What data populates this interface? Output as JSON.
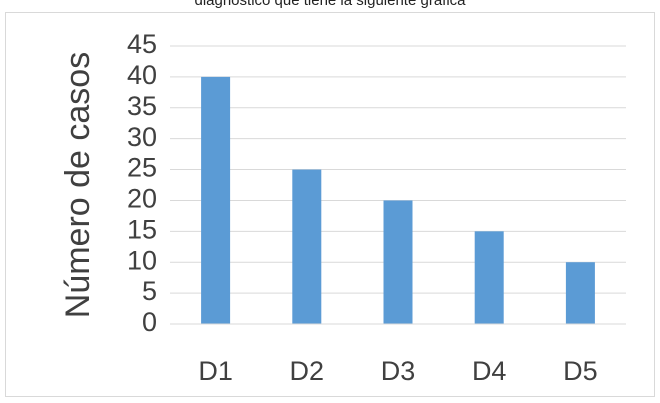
{
  "caption": "diagnóstico que tiene la siguiente gráfica",
  "chart_data": {
    "type": "bar",
    "categories": [
      "D1",
      "D2",
      "D3",
      "D4",
      "D5"
    ],
    "values": [
      40,
      25,
      20,
      15,
      10
    ],
    "title": "",
    "xlabel": "",
    "ylabel": "Número de casos",
    "ylim": [
      0,
      45
    ],
    "yticks": [
      0,
      5,
      10,
      15,
      20,
      25,
      30,
      35,
      40,
      45
    ],
    "grid": true,
    "legend": "none",
    "bar_color": "#5b9bd5",
    "grid_color": "#d9d9d9"
  }
}
